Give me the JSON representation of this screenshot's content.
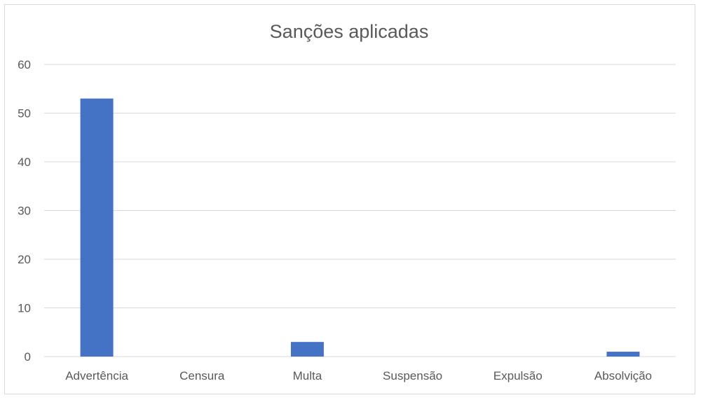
{
  "chart_data": {
    "type": "bar",
    "title": "Sanções aplicadas",
    "categories": [
      "Advertência",
      "Censura",
      "Multa",
      "Suspensão",
      "Expulsão",
      "Absolvição"
    ],
    "values": [
      53,
      0,
      3,
      0,
      0,
      1
    ],
    "xlabel": "",
    "ylabel": "",
    "ylim": [
      0,
      60
    ],
    "yticks": [
      0,
      10,
      20,
      30,
      40,
      50,
      60
    ],
    "grid": true,
    "bar_color": "#4472C4"
  }
}
